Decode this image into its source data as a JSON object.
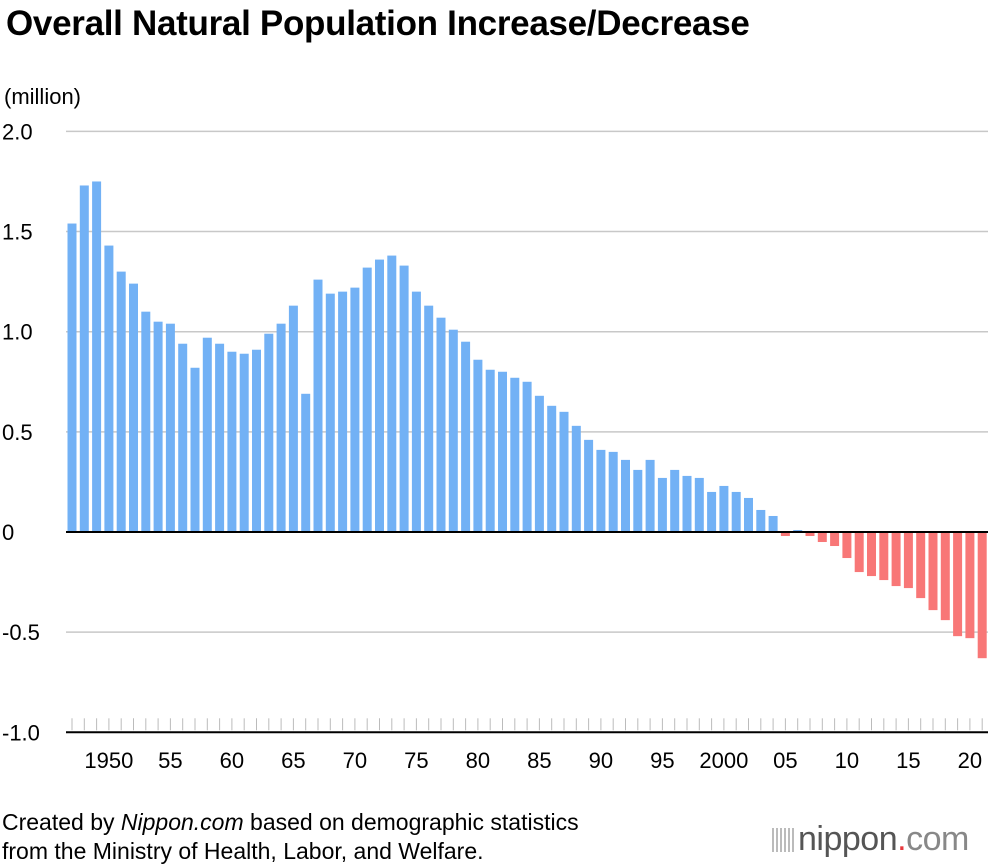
{
  "chart_data": {
    "type": "bar",
    "title": "Overall Natural Population Increase/Decrease",
    "ylabel": "(million)",
    "xlabel": "",
    "ylim": [
      -1.0,
      2.0
    ],
    "yticks": [
      "2.0",
      "1.5",
      "1.0",
      "0.5",
      "0",
      "-0.5",
      "-1.0"
    ],
    "ytick_values": [
      2.0,
      1.5,
      1.0,
      0.5,
      0,
      -0.5,
      -1.0
    ],
    "grid": true,
    "xtick_labels": [
      "1950",
      "55",
      "60",
      "65",
      "70",
      "75",
      "80",
      "85",
      "90",
      "95",
      "2000",
      "05",
      "10",
      "15",
      "20"
    ],
    "xtick_years": [
      1950,
      1955,
      1960,
      1965,
      1970,
      1975,
      1980,
      1985,
      1990,
      1995,
      2000,
      2005,
      2010,
      2015,
      2020
    ],
    "colors": {
      "positive": "#72b1f5",
      "negative": "#f87777",
      "grid": "#c8c8c8",
      "axis": "#000000"
    },
    "categories": [
      1947,
      1948,
      1949,
      1950,
      1951,
      1952,
      1953,
      1954,
      1955,
      1956,
      1957,
      1958,
      1959,
      1960,
      1961,
      1962,
      1963,
      1964,
      1965,
      1966,
      1967,
      1968,
      1969,
      1970,
      1971,
      1972,
      1973,
      1974,
      1975,
      1976,
      1977,
      1978,
      1979,
      1980,
      1981,
      1982,
      1983,
      1984,
      1985,
      1986,
      1987,
      1988,
      1989,
      1990,
      1991,
      1992,
      1993,
      1994,
      1995,
      1996,
      1997,
      1998,
      1999,
      2000,
      2001,
      2002,
      2003,
      2004,
      2005,
      2006,
      2007,
      2008,
      2009,
      2010,
      2011,
      2012,
      2013,
      2014,
      2015,
      2016,
      2017,
      2018,
      2019,
      2020,
      2021
    ],
    "values": [
      1.54,
      1.73,
      1.75,
      1.43,
      1.3,
      1.24,
      1.1,
      1.05,
      1.04,
      0.94,
      0.82,
      0.97,
      0.94,
      0.9,
      0.89,
      0.91,
      0.99,
      1.04,
      1.13,
      0.69,
      1.26,
      1.19,
      1.2,
      1.22,
      1.32,
      1.36,
      1.38,
      1.33,
      1.2,
      1.13,
      1.07,
      1.01,
      0.95,
      0.86,
      0.81,
      0.8,
      0.77,
      0.75,
      0.68,
      0.63,
      0.6,
      0.53,
      0.46,
      0.41,
      0.4,
      0.36,
      0.31,
      0.36,
      0.27,
      0.31,
      0.28,
      0.27,
      0.2,
      0.23,
      0.2,
      0.17,
      0.11,
      0.08,
      -0.02,
      0.01,
      -0.02,
      -0.05,
      -0.07,
      -0.13,
      -0.2,
      -0.22,
      -0.24,
      -0.27,
      -0.28,
      -0.33,
      -0.39,
      -0.44,
      -0.52,
      -0.53,
      -0.63
    ]
  },
  "footer": {
    "note_prefix": "Created by ",
    "note_source": "Nippon.com",
    "note_line1_rest": " based on demographic statistics",
    "note_line2": "from the Ministry of Health, Labor, and Welfare.",
    "logo": "nippon.com"
  }
}
